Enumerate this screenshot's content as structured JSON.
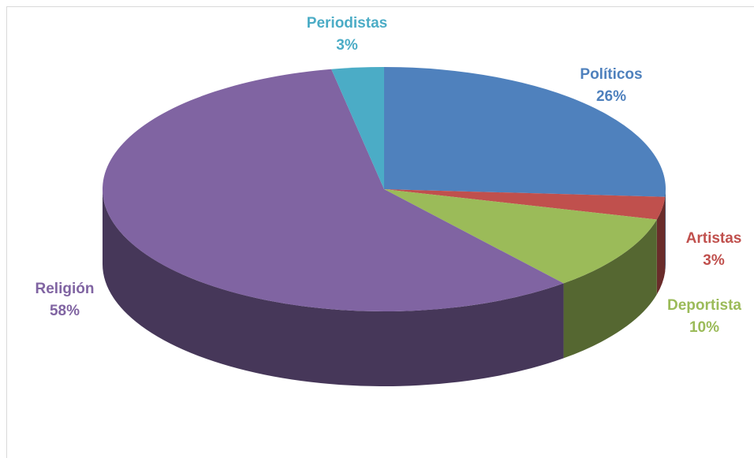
{
  "chart_data": {
    "type": "pie3d",
    "categories": [
      "Políticos",
      "Artistas",
      "Deportista",
      "Religión",
      "Periodistas"
    ],
    "values": [
      26,
      3,
      10,
      58,
      3
    ],
    "value_labels": [
      "26%",
      "3%",
      "10%",
      "58%",
      "3%"
    ],
    "colors": [
      "#4f81bd",
      "#c0504d",
      "#9bbb59",
      "#8064a2",
      "#4bacc6"
    ]
  }
}
